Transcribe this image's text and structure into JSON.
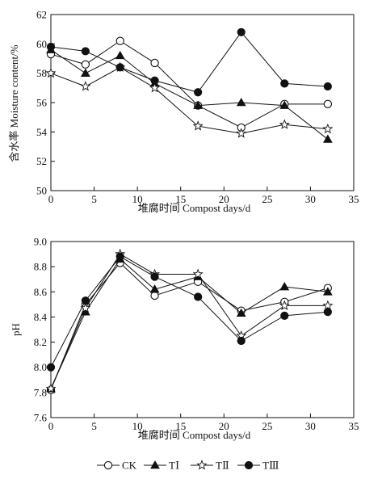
{
  "chart_data": [
    {
      "type": "line",
      "xlabel": "堆腐时间 Compost days/d",
      "ylabel": "含水率 Moisture content/%",
      "xlim": [
        0,
        35
      ],
      "ylim": [
        50,
        62
      ],
      "xticks": [
        "0",
        "5",
        "10",
        "15",
        "20",
        "25",
        "30",
        "35"
      ],
      "yticks": [
        "50",
        "52",
        "54",
        "56",
        "58",
        "60",
        "62"
      ],
      "x": [
        0,
        4,
        8,
        12,
        17,
        22,
        27,
        32
      ],
      "grid": false,
      "series": [
        {
          "name": "CK",
          "marker": "open-circle",
          "values": [
            59.3,
            58.6,
            60.2,
            58.7,
            55.8,
            54.3,
            55.9,
            55.9
          ]
        },
        {
          "name": "TⅠ",
          "marker": "filled-triangle",
          "values": [
            59.6,
            58.0,
            59.2,
            57.3,
            55.8,
            56.0,
            55.8,
            53.5
          ]
        },
        {
          "name": "TⅡ",
          "marker": "open-star",
          "values": [
            58.0,
            57.1,
            58.4,
            57.0,
            54.4,
            53.9,
            54.5,
            54.2
          ]
        },
        {
          "name": "TⅢ",
          "marker": "filled-circle",
          "values": [
            59.8,
            59.5,
            58.4,
            57.5,
            56.7,
            60.8,
            57.3,
            57.1
          ]
        }
      ]
    },
    {
      "type": "line",
      "xlabel": "堆腐时间 Compost days/d",
      "ylabel": "pH",
      "xlim": [
        0,
        35
      ],
      "ylim": [
        7.6,
        9.0
      ],
      "xticks": [
        "0",
        "5",
        "10",
        "15",
        "20",
        "25",
        "30",
        "35"
      ],
      "yticks": [
        "7.6",
        "7.8",
        "8.0",
        "8.2",
        "8.4",
        "8.6",
        "8.8",
        "9.0"
      ],
      "x": [
        0,
        4,
        8,
        12,
        17,
        22,
        27,
        32
      ],
      "grid": false,
      "series": [
        {
          "name": "CK",
          "marker": "open-circle",
          "values": [
            7.82,
            8.5,
            8.83,
            8.57,
            8.68,
            8.45,
            8.52,
            8.63
          ]
        },
        {
          "name": "TⅠ",
          "marker": "filled-triangle",
          "values": [
            7.83,
            8.44,
            8.86,
            8.62,
            8.72,
            8.43,
            8.64,
            8.6
          ]
        },
        {
          "name": "TⅡ",
          "marker": "open-star",
          "values": [
            7.83,
            8.47,
            8.9,
            8.74,
            8.74,
            8.25,
            8.49,
            8.49
          ]
        },
        {
          "name": "TⅢ",
          "marker": "filled-circle",
          "values": [
            8.0,
            8.53,
            8.88,
            8.72,
            8.56,
            8.21,
            8.41,
            8.44
          ]
        }
      ]
    }
  ],
  "legend": {
    "placement": "bottom-center",
    "items": [
      "CK",
      "TⅠ",
      "TⅡ",
      "TⅢ"
    ]
  }
}
